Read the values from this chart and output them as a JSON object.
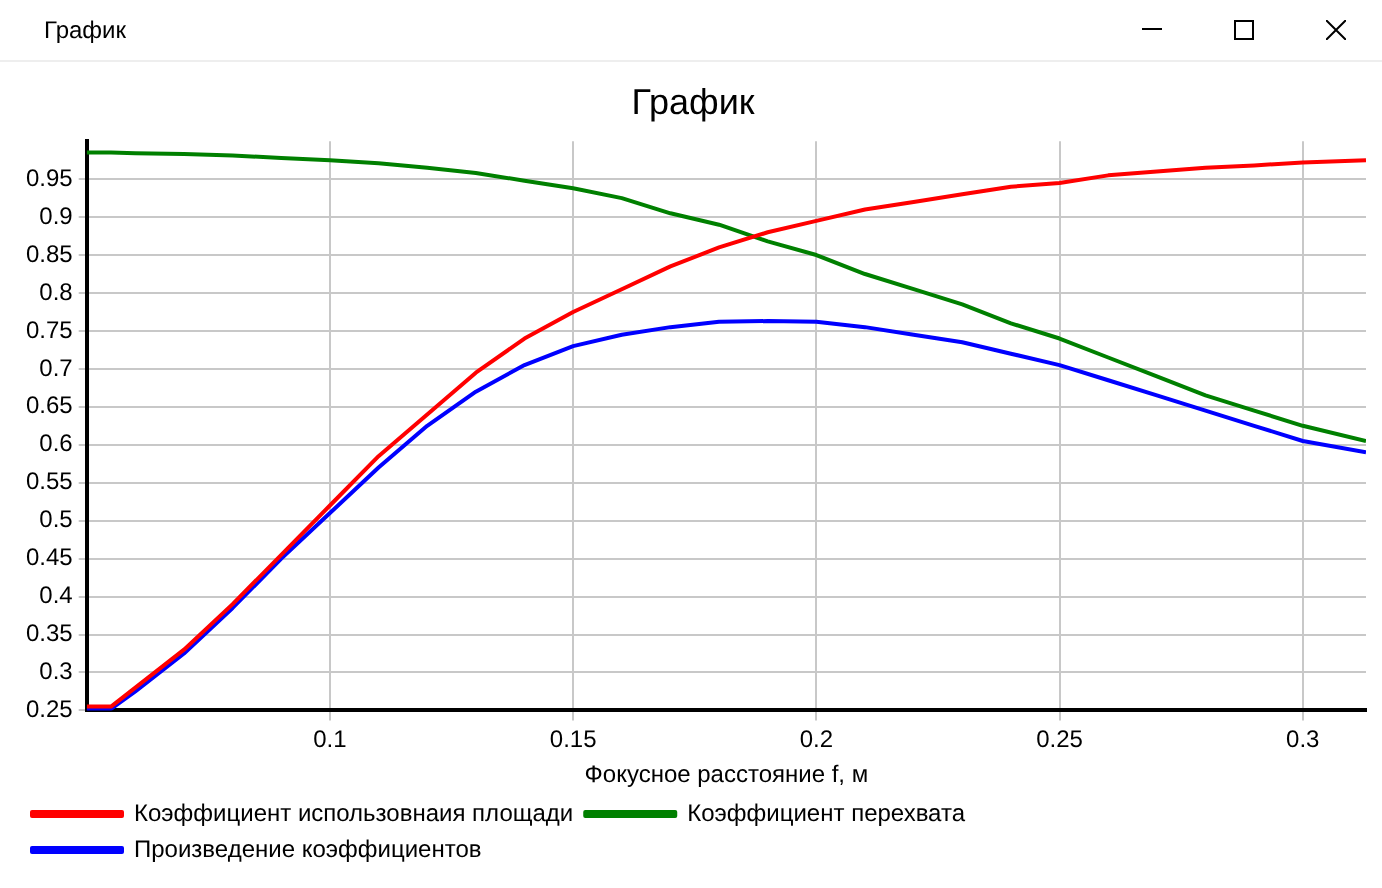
{
  "chart_data": {
    "type": "line",
    "title": "График",
    "xlabel": "Фокусное расстояние f, м",
    "annotations": [
      "График"
    ],
    "x": [
      0.05,
      0.055,
      0.06,
      0.07,
      0.08,
      0.09,
      0.1,
      0.11,
      0.12,
      0.13,
      0.14,
      0.15,
      0.16,
      0.17,
      0.18,
      0.19,
      0.2,
      0.21,
      0.22,
      0.23,
      0.24,
      0.25,
      0.26,
      0.27,
      0.28,
      0.29,
      0.3,
      0.313
    ],
    "series": [
      {
        "name": "Коэффициент использовнаия площади",
        "color": "#ff0000",
        "values": [
          0.255,
          0.255,
          0.28,
          0.33,
          0.39,
          0.455,
          0.52,
          0.585,
          0.64,
          0.695,
          0.74,
          0.775,
          0.805,
          0.835,
          0.86,
          0.88,
          0.895,
          0.91,
          0.92,
          0.93,
          0.94,
          0.945,
          0.955,
          0.96,
          0.965,
          0.968,
          0.972,
          0.975
        ]
      },
      {
        "name": "Коэффициент перехвата",
        "color": "#008000",
        "values": [
          0.985,
          0.985,
          0.984,
          0.983,
          0.981,
          0.978,
          0.975,
          0.971,
          0.965,
          0.958,
          0.948,
          0.938,
          0.925,
          0.905,
          0.89,
          0.868,
          0.85,
          0.825,
          0.805,
          0.785,
          0.76,
          0.74,
          0.715,
          0.69,
          0.665,
          0.645,
          0.625,
          0.605
        ]
      },
      {
        "name": "Произведение коэффициентов",
        "color": "#0000ff",
        "values": [
          0.252,
          0.252,
          0.275,
          0.325,
          0.385,
          0.45,
          0.51,
          0.57,
          0.625,
          0.67,
          0.705,
          0.73,
          0.745,
          0.755,
          0.762,
          0.763,
          0.762,
          0.755,
          0.745,
          0.735,
          0.72,
          0.705,
          0.685,
          0.665,
          0.645,
          0.625,
          0.605,
          0.59
        ]
      }
    ],
    "xlim": [
      0.05,
      0.313
    ],
    "xticks": [
      0.1,
      0.15,
      0.2,
      0.25,
      0.3
    ],
    "ylim": [
      0.25,
      1.0
    ],
    "yticks": [
      0.25,
      0.3,
      0.35,
      0.4,
      0.45,
      0.5,
      0.55,
      0.6,
      0.65,
      0.7,
      0.75,
      0.8,
      0.85,
      0.9,
      0.95
    ],
    "grid": true,
    "legend": "bottom",
    "marker": "none",
    "line_style": "solid"
  }
}
